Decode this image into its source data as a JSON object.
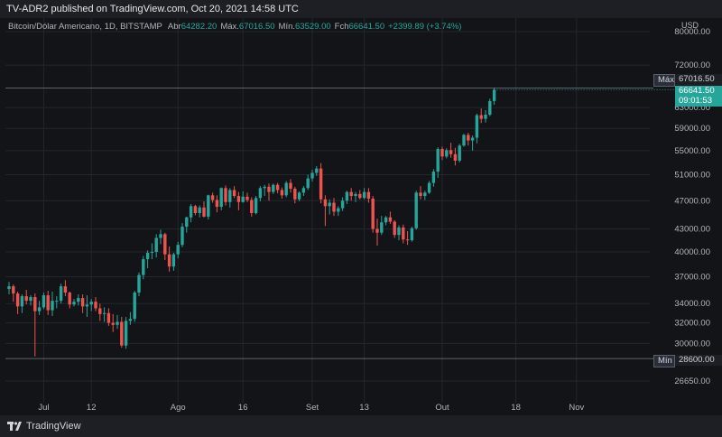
{
  "header": {
    "published_text": "TV-ADR2 published on TradingView.com, Oct 20, 2021 14:58 UTC"
  },
  "legend": {
    "symbol": "Bitcoin/Dólar Americano, 1D, BITSTAMP",
    "open_label": "Abr",
    "open_value": "64282.20",
    "high_label": "Máx.",
    "high_value": "67016.50",
    "low_label": "Mín.",
    "low_value": "63529.00",
    "close_label": "Fch",
    "close_value": "66641.50",
    "change": "+2399.89 (+3.74%)"
  },
  "axis": {
    "currency": "USD",
    "price_ticks": [
      "80000.00",
      "72000.00",
      "67016.50",
      "63000.00",
      "59000.00",
      "55000.00",
      "51000.00",
      "47000.00",
      "43000.00",
      "40000.00",
      "37000.00",
      "34000.00",
      "32000.00",
      "30000.00",
      "28600.00",
      "26650.00"
    ],
    "time_ticks": [
      "Jul",
      "12",
      "Ago",
      "16",
      "Set",
      "13",
      "Out",
      "18",
      "Nov"
    ]
  },
  "price_tags": {
    "max_label": "Máx",
    "max_value": "67016.50",
    "last_value": "66641.50",
    "countdown": "09:01:53",
    "min_label": "Mín",
    "min_value": "28600.00"
  },
  "colors": {
    "up": "#26a69a",
    "down": "#ef5350",
    "background": "#131417",
    "grid": "#23262f"
  },
  "footer": {
    "brand": "TradingView",
    "logo_icon": "tradingview-logo-icon"
  },
  "chart_data": {
    "type": "candlestick",
    "title": "Bitcoin/Dólar Americano, 1D, BITSTAMP",
    "ylabel": "USD",
    "y_scale": "log",
    "ylim": [
      25000,
      83000
    ],
    "x_ticks": [
      {
        "label": "Jul",
        "index": 8
      },
      {
        "label": "12",
        "index": 19
      },
      {
        "label": "Ago",
        "index": 39
      },
      {
        "label": "16",
        "index": 54
      },
      {
        "label": "Set",
        "index": 70
      },
      {
        "label": "13",
        "index": 82
      },
      {
        "label": "Out",
        "index": 100
      },
      {
        "label": "18",
        "index": 117
      },
      {
        "label": "Nov",
        "index": 131
      }
    ],
    "y_ticks": [
      80000,
      72000,
      63000,
      59000,
      55000,
      51000,
      47000,
      43000,
      40000,
      37000,
      34000,
      32000,
      30000,
      26650
    ],
    "candles": [
      [
        35600,
        36400,
        35000,
        35900
      ],
      [
        35900,
        36100,
        34200,
        35100
      ],
      [
        35100,
        35300,
        32900,
        33700
      ],
      [
        33700,
        35000,
        33000,
        34800
      ],
      [
        34800,
        35500,
        33900,
        34300
      ],
      [
        34300,
        34900,
        33800,
        34700
      ],
      [
        34700,
        35100,
        28800,
        33200
      ],
      [
        33200,
        34300,
        32800,
        33600
      ],
      [
        33600,
        35200,
        33400,
        34900
      ],
      [
        34900,
        35400,
        32800,
        33300
      ],
      [
        33300,
        35300,
        32700,
        34300
      ],
      [
        34300,
        34800,
        33500,
        34300
      ],
      [
        34300,
        36200,
        34000,
        35900
      ],
      [
        35900,
        36600,
        34800,
        35200
      ],
      [
        35200,
        35300,
        33500,
        33900
      ],
      [
        33900,
        34500,
        33700,
        34200
      ],
      [
        34200,
        35000,
        33800,
        34600
      ],
      [
        34600,
        35000,
        33000,
        33700
      ],
      [
        33700,
        34900,
        32600,
        33900
      ],
      [
        33900,
        34500,
        33200,
        34200
      ],
      [
        34200,
        34700,
        33200,
        33500
      ],
      [
        33500,
        34000,
        32200,
        32900
      ],
      [
        32900,
        33600,
        32100,
        33000
      ],
      [
        33000,
        33500,
        31700,
        32000
      ],
      [
        32000,
        32900,
        31100,
        31800
      ],
      [
        31800,
        32800,
        31400,
        32100
      ],
      [
        32100,
        32600,
        29600,
        29800
      ],
      [
        29800,
        32600,
        29500,
        32200
      ],
      [
        32200,
        33100,
        31800,
        32400
      ],
      [
        32400,
        35400,
        32100,
        35200
      ],
      [
        35200,
        37500,
        34800,
        37200
      ],
      [
        37200,
        39500,
        36700,
        39100
      ],
      [
        39100,
        40200,
        38000,
        39900
      ],
      [
        39900,
        41100,
        39100,
        40000
      ],
      [
        40000,
        42300,
        39300,
        41800
      ],
      [
        41800,
        42900,
        41000,
        42300
      ],
      [
        42300,
        42500,
        39000,
        39700
      ],
      [
        39700,
        40700,
        37600,
        38200
      ],
      [
        38200,
        39900,
        37700,
        39700
      ],
      [
        39700,
        41300,
        39200,
        40900
      ],
      [
        40900,
        43800,
        40600,
        43300
      ],
      [
        43300,
        44700,
        42500,
        44600
      ],
      [
        44600,
        46500,
        43900,
        46200
      ],
      [
        46200,
        46400,
        44900,
        45200
      ],
      [
        45200,
        46300,
        44600,
        46000
      ],
      [
        46000,
        46900,
        44600,
        44700
      ],
      [
        44700,
        47900,
        44300,
        47800
      ],
      [
        47800,
        48200,
        46700,
        47100
      ],
      [
        47100,
        47800,
        45300,
        46100
      ],
      [
        46100,
        49000,
        45600,
        48900
      ],
      [
        48900,
        49300,
        46300,
        46800
      ],
      [
        46800,
        48900,
        46000,
        48600
      ],
      [
        48600,
        49200,
        47400,
        47700
      ],
      [
        47700,
        48300,
        45600,
        46800
      ],
      [
        46800,
        48400,
        46700,
        47600
      ],
      [
        47600,
        48200,
        46800,
        47100
      ],
      [
        47100,
        47500,
        44700,
        45200
      ],
      [
        45200,
        47700,
        45000,
        47400
      ],
      [
        47400,
        49200,
        46900,
        48900
      ],
      [
        48900,
        49400,
        47700,
        49100
      ],
      [
        49100,
        49600,
        47000,
        48300
      ],
      [
        48300,
        49600,
        48000,
        49400
      ],
      [
        49400,
        49700,
        48100,
        48600
      ],
      [
        48600,
        49000,
        47300,
        47800
      ],
      [
        47800,
        50000,
        47500,
        49700
      ],
      [
        49700,
        50300,
        48200,
        48800
      ],
      [
        48800,
        49100,
        46600,
        47200
      ],
      [
        47200,
        48400,
        46900,
        48200
      ],
      [
        48200,
        49200,
        47700,
        48900
      ],
      [
        48900,
        51000,
        48600,
        50400
      ],
      [
        50400,
        51800,
        49900,
        51300
      ],
      [
        51300,
        52400,
        50800,
        52000
      ],
      [
        52000,
        52900,
        46600,
        47200
      ],
      [
        47200,
        47800,
        43400,
        46200
      ],
      [
        46200,
        47200,
        45000,
        46700
      ],
      [
        46700,
        47400,
        44800,
        45400
      ],
      [
        45400,
        46200,
        44800,
        45900
      ],
      [
        45900,
        47500,
        45500,
        47000
      ],
      [
        47000,
        48500,
        46500,
        48300
      ],
      [
        48300,
        48900,
        47000,
        47700
      ],
      [
        47700,
        48300,
        46800,
        48000
      ],
      [
        48000,
        48600,
        47200,
        47400
      ],
      [
        47400,
        48900,
        47200,
        48300
      ],
      [
        48300,
        48900,
        46700,
        47300
      ],
      [
        47300,
        47700,
        42500,
        43000
      ],
      [
        43000,
        44400,
        40800,
        42500
      ],
      [
        42500,
        44800,
        42200,
        43900
      ],
      [
        43900,
        44800,
        43500,
        44600
      ],
      [
        44600,
        45400,
        43700,
        44000
      ],
      [
        44000,
        44200,
        41800,
        42200
      ],
      [
        42200,
        43500,
        41500,
        43200
      ],
      [
        43200,
        43600,
        41100,
        41600
      ],
      [
        41600,
        42700,
        40900,
        41500
      ],
      [
        41500,
        43300,
        41300,
        43100
      ],
      [
        43100,
        48500,
        42900,
        48200
      ],
      [
        48200,
        49200,
        47200,
        47700
      ],
      [
        47700,
        48500,
        47100,
        48200
      ],
      [
        48200,
        50000,
        48000,
        49700
      ],
      [
        49700,
        51900,
        49100,
        51500
      ],
      [
        51500,
        55600,
        50500,
        55300
      ],
      [
        55300,
        55700,
        53400,
        54000
      ],
      [
        54000,
        55400,
        53700,
        55100
      ],
      [
        55100,
        56400,
        53800,
        54400
      ],
      [
        54400,
        55500,
        52500,
        53300
      ],
      [
        53300,
        56200,
        53000,
        55900
      ],
      [
        55900,
        58000,
        55700,
        57800
      ],
      [
        57800,
        58200,
        55900,
        56800
      ],
      [
        56800,
        57700,
        55000,
        57300
      ],
      [
        57300,
        61800,
        56300,
        61500
      ],
      [
        61500,
        62800,
        60000,
        60800
      ],
      [
        60800,
        62500,
        60100,
        61600
      ],
      [
        61600,
        64800,
        61300,
        64300
      ],
      [
        64300,
        67017,
        63529,
        66642
      ]
    ]
  }
}
